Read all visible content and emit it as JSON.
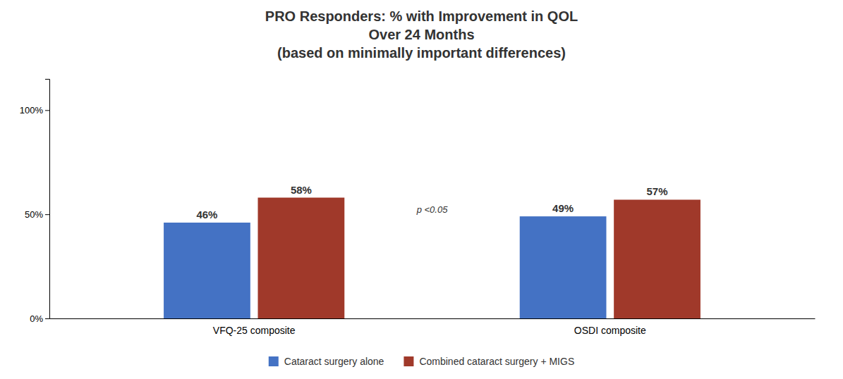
{
  "chart_data": {
    "type": "bar",
    "title": "PRO Responders: % with Improvement in QOL\nOver 24 Months\n(based on minimally important differences)",
    "categories": [
      "VFQ-25 composite",
      "OSDI composite"
    ],
    "series": [
      {
        "name": "Cataract surgery alone",
        "color": "#4472C4",
        "values": [
          46,
          49
        ],
        "value_labels": [
          "46%",
          "49%"
        ]
      },
      {
        "name": "Combined cataract surgery + MIGS",
        "color": "#A0392A",
        "values": [
          58,
          57
        ],
        "value_labels": [
          "58%",
          "57%"
        ]
      }
    ],
    "ylim": [
      0,
      115
    ],
    "yticks": [
      {
        "value": 0,
        "label": "0%"
      },
      {
        "value": 50,
        "label": "50%"
      },
      {
        "value": 100,
        "label": "100%"
      }
    ],
    "data_labels": true,
    "grid": false,
    "legend": "bottom",
    "annotations": [
      "p <0.05"
    ]
  }
}
